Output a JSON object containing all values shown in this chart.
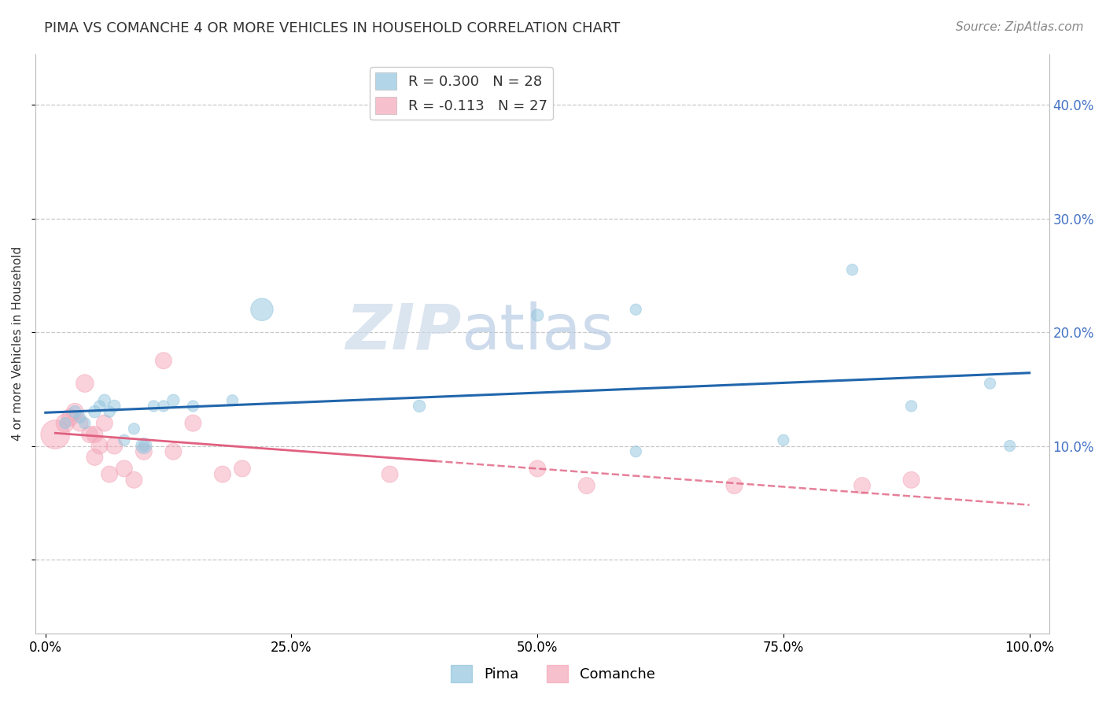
{
  "title": "PIMA VS COMANCHE 4 OR MORE VEHICLES IN HOUSEHOLD CORRELATION CHART",
  "source": "Source: ZipAtlas.com",
  "ylabel": "4 or more Vehicles in Household",
  "watermark_zip": "ZIP",
  "watermark_atlas": "atlas",
  "legend_pima_r": "R = 0.300",
  "legend_pima_n": "N = 28",
  "legend_comanche_r": "R = -0.113",
  "legend_comanche_n": "N = 27",
  "pima_color": "#92c5de",
  "comanche_color": "#f4a6b8",
  "pima_line_color": "#2166ac",
  "comanche_line_color": "#e06080",
  "xlim": [
    -0.01,
    1.02
  ],
  "ylim": [
    -0.065,
    0.445
  ],
  "yticks": [
    0.0,
    0.1,
    0.2,
    0.3,
    0.4
  ],
  "xticks": [
    0.0,
    0.25,
    0.5,
    0.75,
    1.0
  ],
  "xtick_labels": [
    "0.0%",
    "25.0%",
    "50.0%",
    "75.0%",
    "100.0%"
  ],
  "ytick_right_labels": [
    "",
    "10.0%",
    "20.0%",
    "30.0%",
    "40.0%"
  ],
  "pima_x": [
    0.02,
    0.03,
    0.035,
    0.04,
    0.05,
    0.055,
    0.06,
    0.065,
    0.07,
    0.08,
    0.09,
    0.1,
    0.11,
    0.12,
    0.13,
    0.15,
    0.19,
    0.22,
    0.38,
    0.5,
    0.6,
    0.82,
    0.88,
    0.96,
    0.98,
    0.6,
    0.75,
    0.1
  ],
  "pima_y": [
    0.12,
    0.13,
    0.125,
    0.12,
    0.13,
    0.135,
    0.14,
    0.13,
    0.135,
    0.105,
    0.115,
    0.1,
    0.135,
    0.135,
    0.14,
    0.135,
    0.14,
    0.22,
    0.135,
    0.215,
    0.095,
    0.255,
    0.135,
    0.155,
    0.1,
    0.22,
    0.105,
    0.1
  ],
  "pima_sizes": [
    30,
    35,
    30,
    30,
    35,
    30,
    35,
    30,
    35,
    30,
    30,
    30,
    30,
    30,
    35,
    30,
    30,
    120,
    35,
    35,
    30,
    30,
    30,
    30,
    30,
    30,
    30,
    60
  ],
  "comanche_x": [
    0.01,
    0.02,
    0.025,
    0.03,
    0.035,
    0.04,
    0.045,
    0.05,
    0.055,
    0.06,
    0.065,
    0.07,
    0.08,
    0.09,
    0.1,
    0.12,
    0.15,
    0.18,
    0.2,
    0.35,
    0.5,
    0.55,
    0.7,
    0.83,
    0.88,
    0.05,
    0.13
  ],
  "comanche_y": [
    0.11,
    0.12,
    0.125,
    0.13,
    0.12,
    0.155,
    0.11,
    0.09,
    0.1,
    0.12,
    0.075,
    0.1,
    0.08,
    0.07,
    0.095,
    0.175,
    0.12,
    0.075,
    0.08,
    0.075,
    0.08,
    0.065,
    0.065,
    0.065,
    0.07,
    0.11,
    0.095
  ],
  "comanche_sizes": [
    200,
    80,
    70,
    70,
    65,
    75,
    65,
    65,
    65,
    65,
    65,
    65,
    65,
    65,
    65,
    65,
    65,
    65,
    65,
    65,
    65,
    65,
    65,
    65,
    65,
    65,
    65
  ],
  "grid_color": "#c8c8c8",
  "background_color": "#ffffff",
  "title_fontsize": 13,
  "axis_fontsize": 11,
  "tick_fontsize": 12,
  "source_fontsize": 11,
  "watermark_fontsize_zip": 58,
  "watermark_fontsize_atlas": 58
}
